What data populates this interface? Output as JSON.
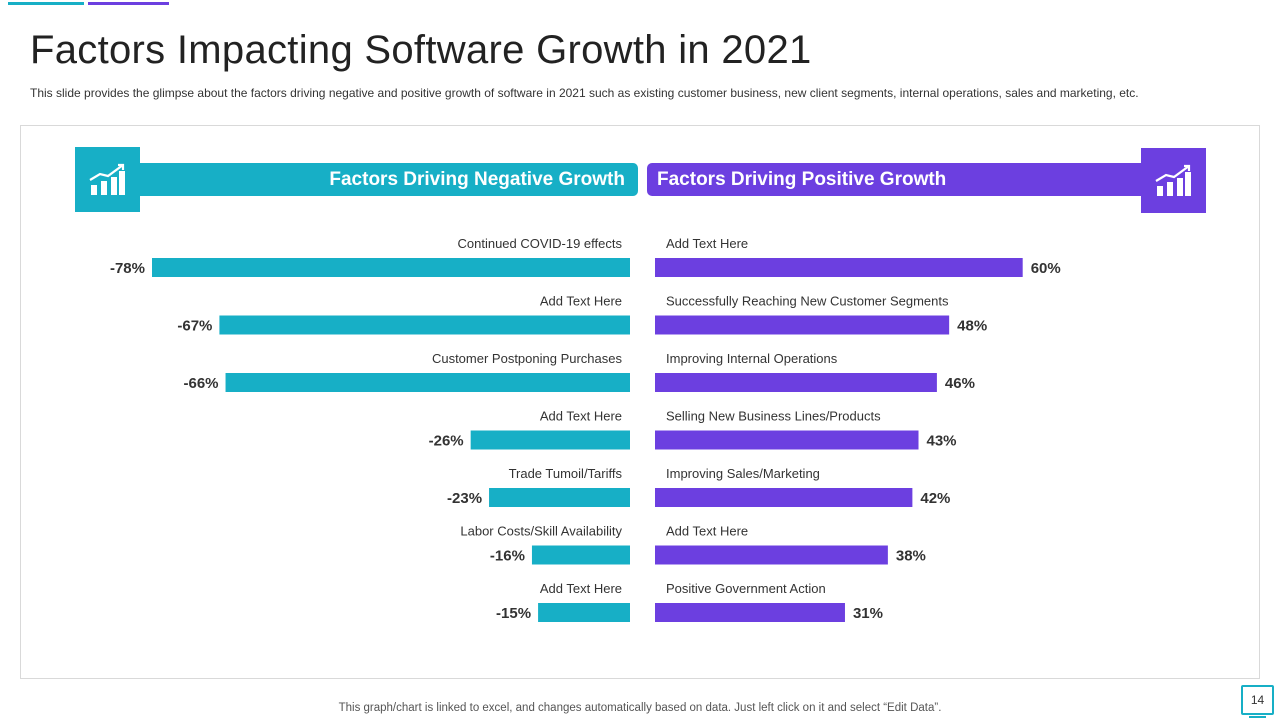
{
  "title": "Factors Impacting Software Growth in 2021",
  "subtitle": "This slide provides the glimpse about the factors driving negative and positive growth of software in 2021 such as existing customer business, new client segments, internal operations, sales and marketing, etc.",
  "footer_note": "This graph/chart is linked to excel,  and changes automatically based on data. Just left click on it and select “Edit Data”.",
  "page_number": "14",
  "colors": {
    "negative": "#17AFC6",
    "positive": "#6C3FE0"
  },
  "icons": {
    "left": "growth-chart-icon",
    "right": "growth-chart-icon"
  },
  "chart_data": {
    "type": "bar",
    "orientation": "horizontal-diverging",
    "series": [
      {
        "name": "Factors Driving Negative Growth",
        "categories": [
          "Continued  COVID-19  effects",
          "Add Text Here",
          "Customer  Postponing  Purchases",
          "Add Text Here",
          "Trade  Tumoil/Tariffs",
          "Labor Costs/Skill Availability",
          "Add Text Here"
        ],
        "values": [
          -78,
          -67,
          -66,
          -26,
          -23,
          -16,
          -15
        ],
        "labels": [
          "-78%",
          "-67%",
          "-66%",
          "-26%",
          "-23%",
          "-16%",
          "-15%"
        ]
      },
      {
        "name": "Factors Driving Positive Growth",
        "categories": [
          "Add Text Here",
          "Successfully  Reaching  New  Customer  Segments",
          "Improving  Internal  Operations",
          "Selling New  Business Lines/Products",
          "Improving  Sales/Marketing",
          "Add Text Here",
          "Positive Government  Action"
        ],
        "values": [
          60,
          48,
          46,
          43,
          42,
          38,
          31
        ],
        "labels": [
          "60%",
          "48%",
          "46%",
          "43%",
          "42%",
          "38%",
          "31%"
        ]
      }
    ],
    "value_unit": "%"
  }
}
